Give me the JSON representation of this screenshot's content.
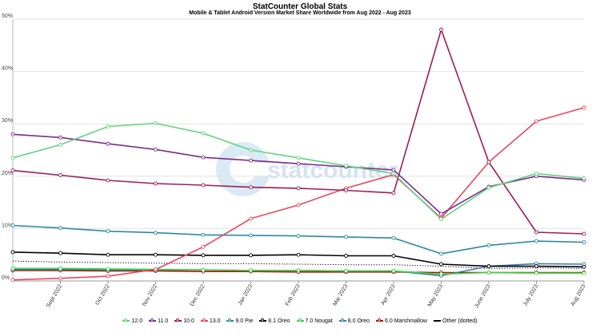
{
  "chart_data": {
    "type": "line",
    "title": "StatCounter Global Stats",
    "subtitle": "Mobile & Tablet Android Version Market Share Worldwide from Aug 2022 - Aug 2023",
    "watermark": "statcounter",
    "x": [
      "Aug 2022",
      "Sept 2022",
      "Oct 2022",
      "Nov 2022",
      "Dec 2022",
      "Jan 2023",
      "Feb 2023",
      "Mar 2023",
      "Apr 2023",
      "May 2023",
      "June 2023",
      "July 2023",
      "Aug 2023"
    ],
    "x_tick_labels": [
      "Sept 2022",
      "Oct 2022",
      "Nov 2022",
      "Dec 2022",
      "Jan 2023",
      "Feb 2023",
      "Mar 2023",
      "Apr 2023",
      "May 2023",
      "June 2023",
      "July 2023",
      "Aug 2023"
    ],
    "y_ticks": [
      "0%",
      "10%",
      "20%",
      "30%",
      "40%",
      "50%"
    ],
    "ylim": [
      0,
      50
    ],
    "grid": "horizontal",
    "legend_position": "bottom",
    "series": [
      {
        "name": "12.0",
        "color": "#5fd37e",
        "marker": true,
        "values": [
          23.5,
          26.0,
          29.5,
          30.1,
          28.2,
          25.0,
          23.5,
          22.0,
          20.5,
          11.8,
          17.8,
          20.5,
          19.6
        ]
      },
      {
        "name": "11.0",
        "color": "#7d2a8c",
        "marker": true,
        "values": [
          28.0,
          27.4,
          26.2,
          25.1,
          23.6,
          23.0,
          22.4,
          21.8,
          21.2,
          12.8,
          18.0,
          20.0,
          19.3
        ]
      },
      {
        "name": "10.0",
        "color": "#9c1c57",
        "marker": true,
        "values": [
          21.1,
          20.2,
          19.2,
          18.6,
          18.3,
          17.9,
          17.7,
          17.3,
          16.8,
          48.0,
          22.7,
          9.3,
          9.0
        ]
      },
      {
        "name": "13.0",
        "color": "#e8475f",
        "marker": true,
        "values": [
          0.2,
          0.5,
          0.9,
          2.2,
          6.5,
          11.9,
          14.5,
          17.7,
          20.3,
          12.0,
          22.7,
          30.5,
          33.1
        ]
      },
      {
        "name": "9.0 Pie",
        "color": "#2a8aa0",
        "marker": true,
        "values": [
          10.6,
          10.1,
          9.5,
          9.2,
          8.8,
          8.7,
          8.6,
          8.4,
          8.2,
          5.2,
          6.8,
          7.6,
          7.4
        ]
      },
      {
        "name": "8.1 Oreo",
        "color": "#000000",
        "marker": true,
        "values": [
          5.5,
          5.3,
          5.0,
          5.0,
          4.9,
          4.9,
          5.0,
          4.8,
          4.8,
          3.2,
          2.8,
          2.8,
          2.7
        ]
      },
      {
        "name": "7.0 Nougat",
        "color": "#3ad63a",
        "marker": true,
        "values": [
          2.4,
          2.4,
          2.3,
          2.2,
          2.1,
          2.0,
          2.0,
          1.9,
          1.9,
          1.3,
          1.6,
          1.5,
          1.5
        ]
      },
      {
        "name": "8.0 Oreo",
        "color": "#3b7da8",
        "marker": true,
        "values": [
          2.2,
          2.2,
          2.1,
          2.1,
          2.1,
          2.0,
          2.0,
          1.9,
          1.9,
          1.0,
          2.8,
          3.3,
          3.2
        ]
      },
      {
        "name": "6.0 Marshmallow",
        "color": "#b01010",
        "marker": true,
        "values": [
          2.0,
          2.0,
          1.9,
          1.9,
          1.8,
          1.8,
          1.7,
          1.7,
          1.7,
          1.6,
          1.6,
          1.6,
          1.6
        ]
      },
      {
        "name": "Other (dotted)",
        "color": "#000000",
        "marker": false,
        "dotted": true,
        "values": [
          3.8,
          3.6,
          3.5,
          3.4,
          3.3,
          3.3,
          3.2,
          3.1,
          3.1,
          2.8,
          2.4,
          2.5,
          2.4
        ]
      }
    ]
  }
}
